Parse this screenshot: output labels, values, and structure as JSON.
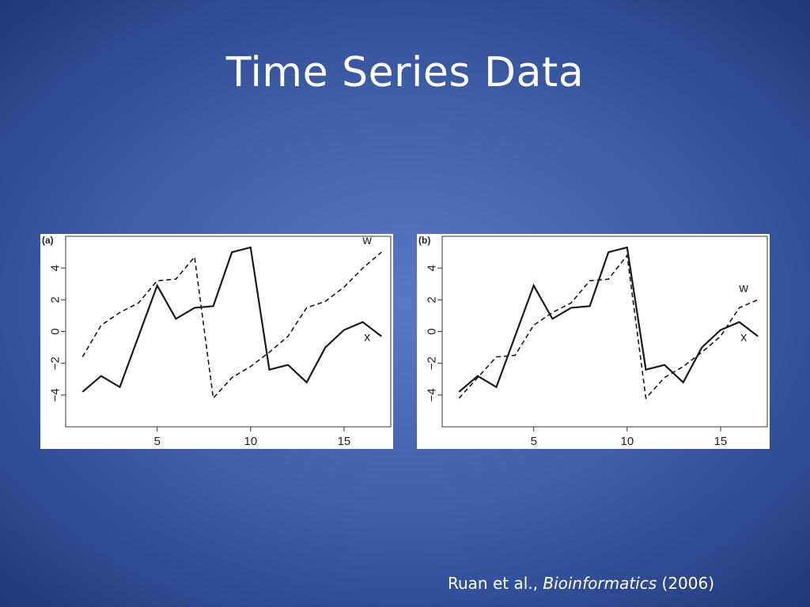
{
  "slide": {
    "title": "Time Series Data",
    "citation": {
      "authors": "Ruan et al., ",
      "journal": "Bioinformatics",
      "year": " (2006)"
    }
  },
  "chart_data": [
    {
      "type": "line",
      "panel_label": "(a)",
      "x": [
        1,
        2,
        3,
        4,
        5,
        6,
        7,
        8,
        9,
        10,
        11,
        12,
        13,
        14,
        15,
        16,
        17
      ],
      "xlim": [
        0.1,
        17.5
      ],
      "ylim": [
        -6.0,
        6.0
      ],
      "xticks": [
        5,
        10,
        15
      ],
      "yticks": [
        -4,
        -2,
        0,
        2,
        4
      ],
      "xtick_labels": [
        "5",
        "10",
        "15"
      ],
      "ytick_labels": [
        "−4",
        "−2",
        "0",
        "2",
        "4"
      ],
      "grid": false,
      "series": [
        {
          "name": "x",
          "style": "solid",
          "values": [
            -3.8,
            -2.8,
            -3.5,
            -0.3,
            2.9,
            0.8,
            1.5,
            1.6,
            5.0,
            5.3,
            -2.4,
            -2.1,
            -3.2,
            -1.0,
            0.1,
            0.6,
            -0.3
          ]
        },
        {
          "name": "w",
          "style": "dashed",
          "values": [
            -1.6,
            0.4,
            1.2,
            1.8,
            3.2,
            3.3,
            4.7,
            -4.2,
            -2.9,
            -2.2,
            -1.3,
            -0.3,
            1.5,
            1.9,
            2.8,
            4.0,
            5.0
          ]
        }
      ]
    },
    {
      "type": "line",
      "panel_label": "(b)",
      "x": [
        1,
        2,
        3,
        4,
        5,
        6,
        7,
        8,
        9,
        10,
        11,
        12,
        13,
        14,
        15,
        16,
        17
      ],
      "xlim": [
        0.1,
        17.5
      ],
      "ylim": [
        -6.0,
        6.0
      ],
      "xticks": [
        5,
        10,
        15
      ],
      "yticks": [
        -4,
        -2,
        0,
        2,
        4
      ],
      "xtick_labels": [
        "5",
        "10",
        "15"
      ],
      "ytick_labels": [
        "−4",
        "−2",
        "0",
        "2",
        "4"
      ],
      "grid": false,
      "series": [
        {
          "name": "x",
          "style": "solid",
          "values": [
            -3.8,
            -2.8,
            -3.5,
            -0.3,
            2.9,
            0.8,
            1.5,
            1.6,
            5.0,
            5.3,
            -2.4,
            -2.1,
            -3.2,
            -1.0,
            0.1,
            0.6,
            -0.3
          ]
        },
        {
          "name": "w",
          "style": "dashed",
          "values": [
            -4.2,
            -2.9,
            -1.6,
            -1.5,
            0.4,
            1.2,
            1.8,
            3.2,
            3.3,
            4.8,
            -4.2,
            -2.9,
            -2.2,
            -1.3,
            -0.3,
            1.5,
            2.0
          ]
        }
      ]
    }
  ]
}
